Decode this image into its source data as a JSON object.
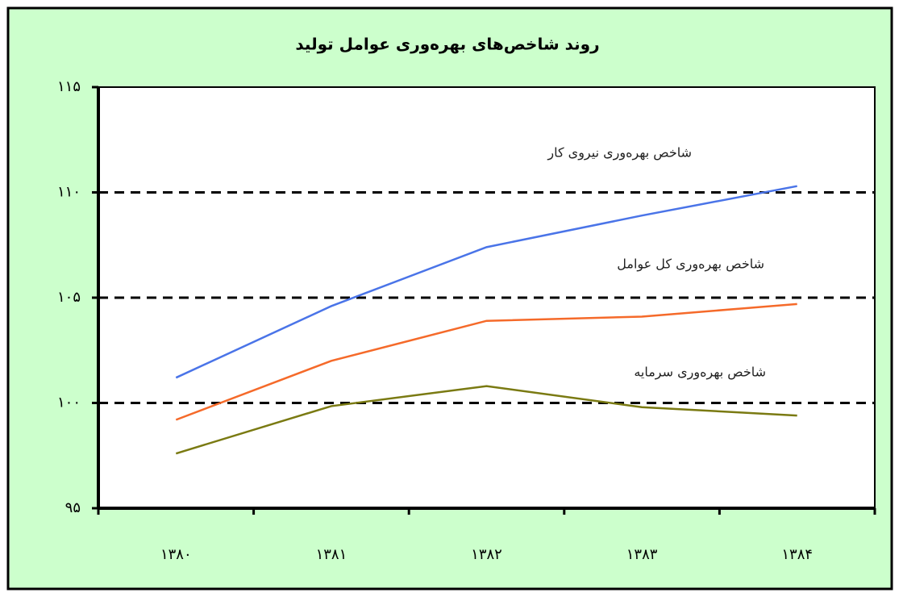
{
  "chart_data": {
    "type": "line",
    "title": "روند شاخص‌های بهره‌وری عوامل تولید",
    "categories": [
      "۱۳۸۰",
      "۱۳۸۱",
      "۱۳۸۲",
      "۱۳۸۳",
      "۱۳۸۴"
    ],
    "series": [
      {
        "name": "شاخص بهره‌وری نیروی کار",
        "color": "#4a74e8",
        "values": [
          101.2,
          104.6,
          107.4,
          108.9,
          110.3
        ]
      },
      {
        "name": "شاخص بهره‌وری کل عوامل",
        "color": "#f56a2a",
        "values": [
          99.2,
          102.0,
          103.9,
          104.1,
          104.7
        ]
      },
      {
        "name": "شاخص بهره‌وری سرمایه",
        "color": "#7a7a12",
        "values": [
          97.6,
          99.85,
          100.8,
          99.8,
          99.4
        ]
      }
    ],
    "ylim": [
      95,
      115
    ],
    "yticks": [
      {
        "value": 95,
        "label": "۹۵"
      },
      {
        "value": 100,
        "label": "۱۰۰"
      },
      {
        "value": 105,
        "label": "۱۰۵"
      },
      {
        "value": 110,
        "label": "۱۱۰"
      },
      {
        "value": 115,
        "label": "۱۱۵"
      }
    ],
    "grid": true
  }
}
